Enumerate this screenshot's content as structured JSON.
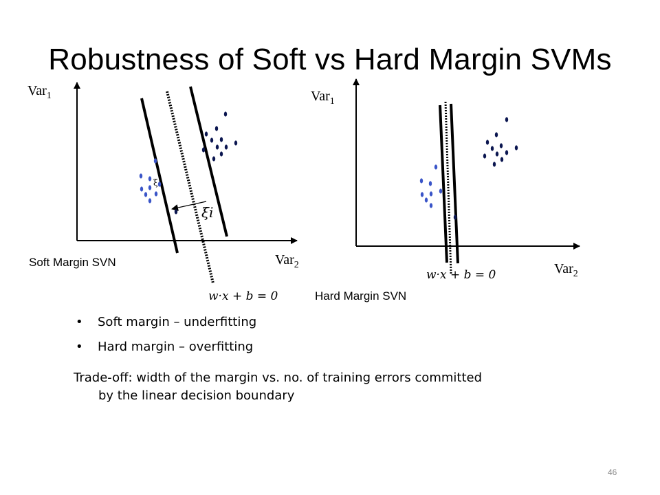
{
  "slide": {
    "title": "Robustness of Soft vs Hard Margin SVMs",
    "page_number": "46"
  },
  "left_diagram": {
    "y_axis_label": "Var",
    "y_axis_sub": "1",
    "x_axis_label": "Var",
    "x_axis_sub": "2",
    "caption": "Soft Margin SVN",
    "equation": "w·x + b = 0",
    "slack_label": "ξi",
    "slack_label_small": "ξ"
  },
  "right_diagram": {
    "y_axis_label": "Var",
    "y_axis_sub": "1",
    "x_axis_label": "Var",
    "x_axis_sub": "2",
    "caption": "Hard Margin SVN",
    "equation": "w·x + b = 0"
  },
  "bullets": [
    "Soft margin – underfitting",
    "Hard margin – overfitting"
  ],
  "tradeoff": {
    "line1": "Trade-off: width of the margin vs. no. of training errors committed",
    "line2": "by the linear decision boundary"
  },
  "colors": {
    "class_dark": "#0b1650",
    "class_light": "#3a55c8"
  }
}
